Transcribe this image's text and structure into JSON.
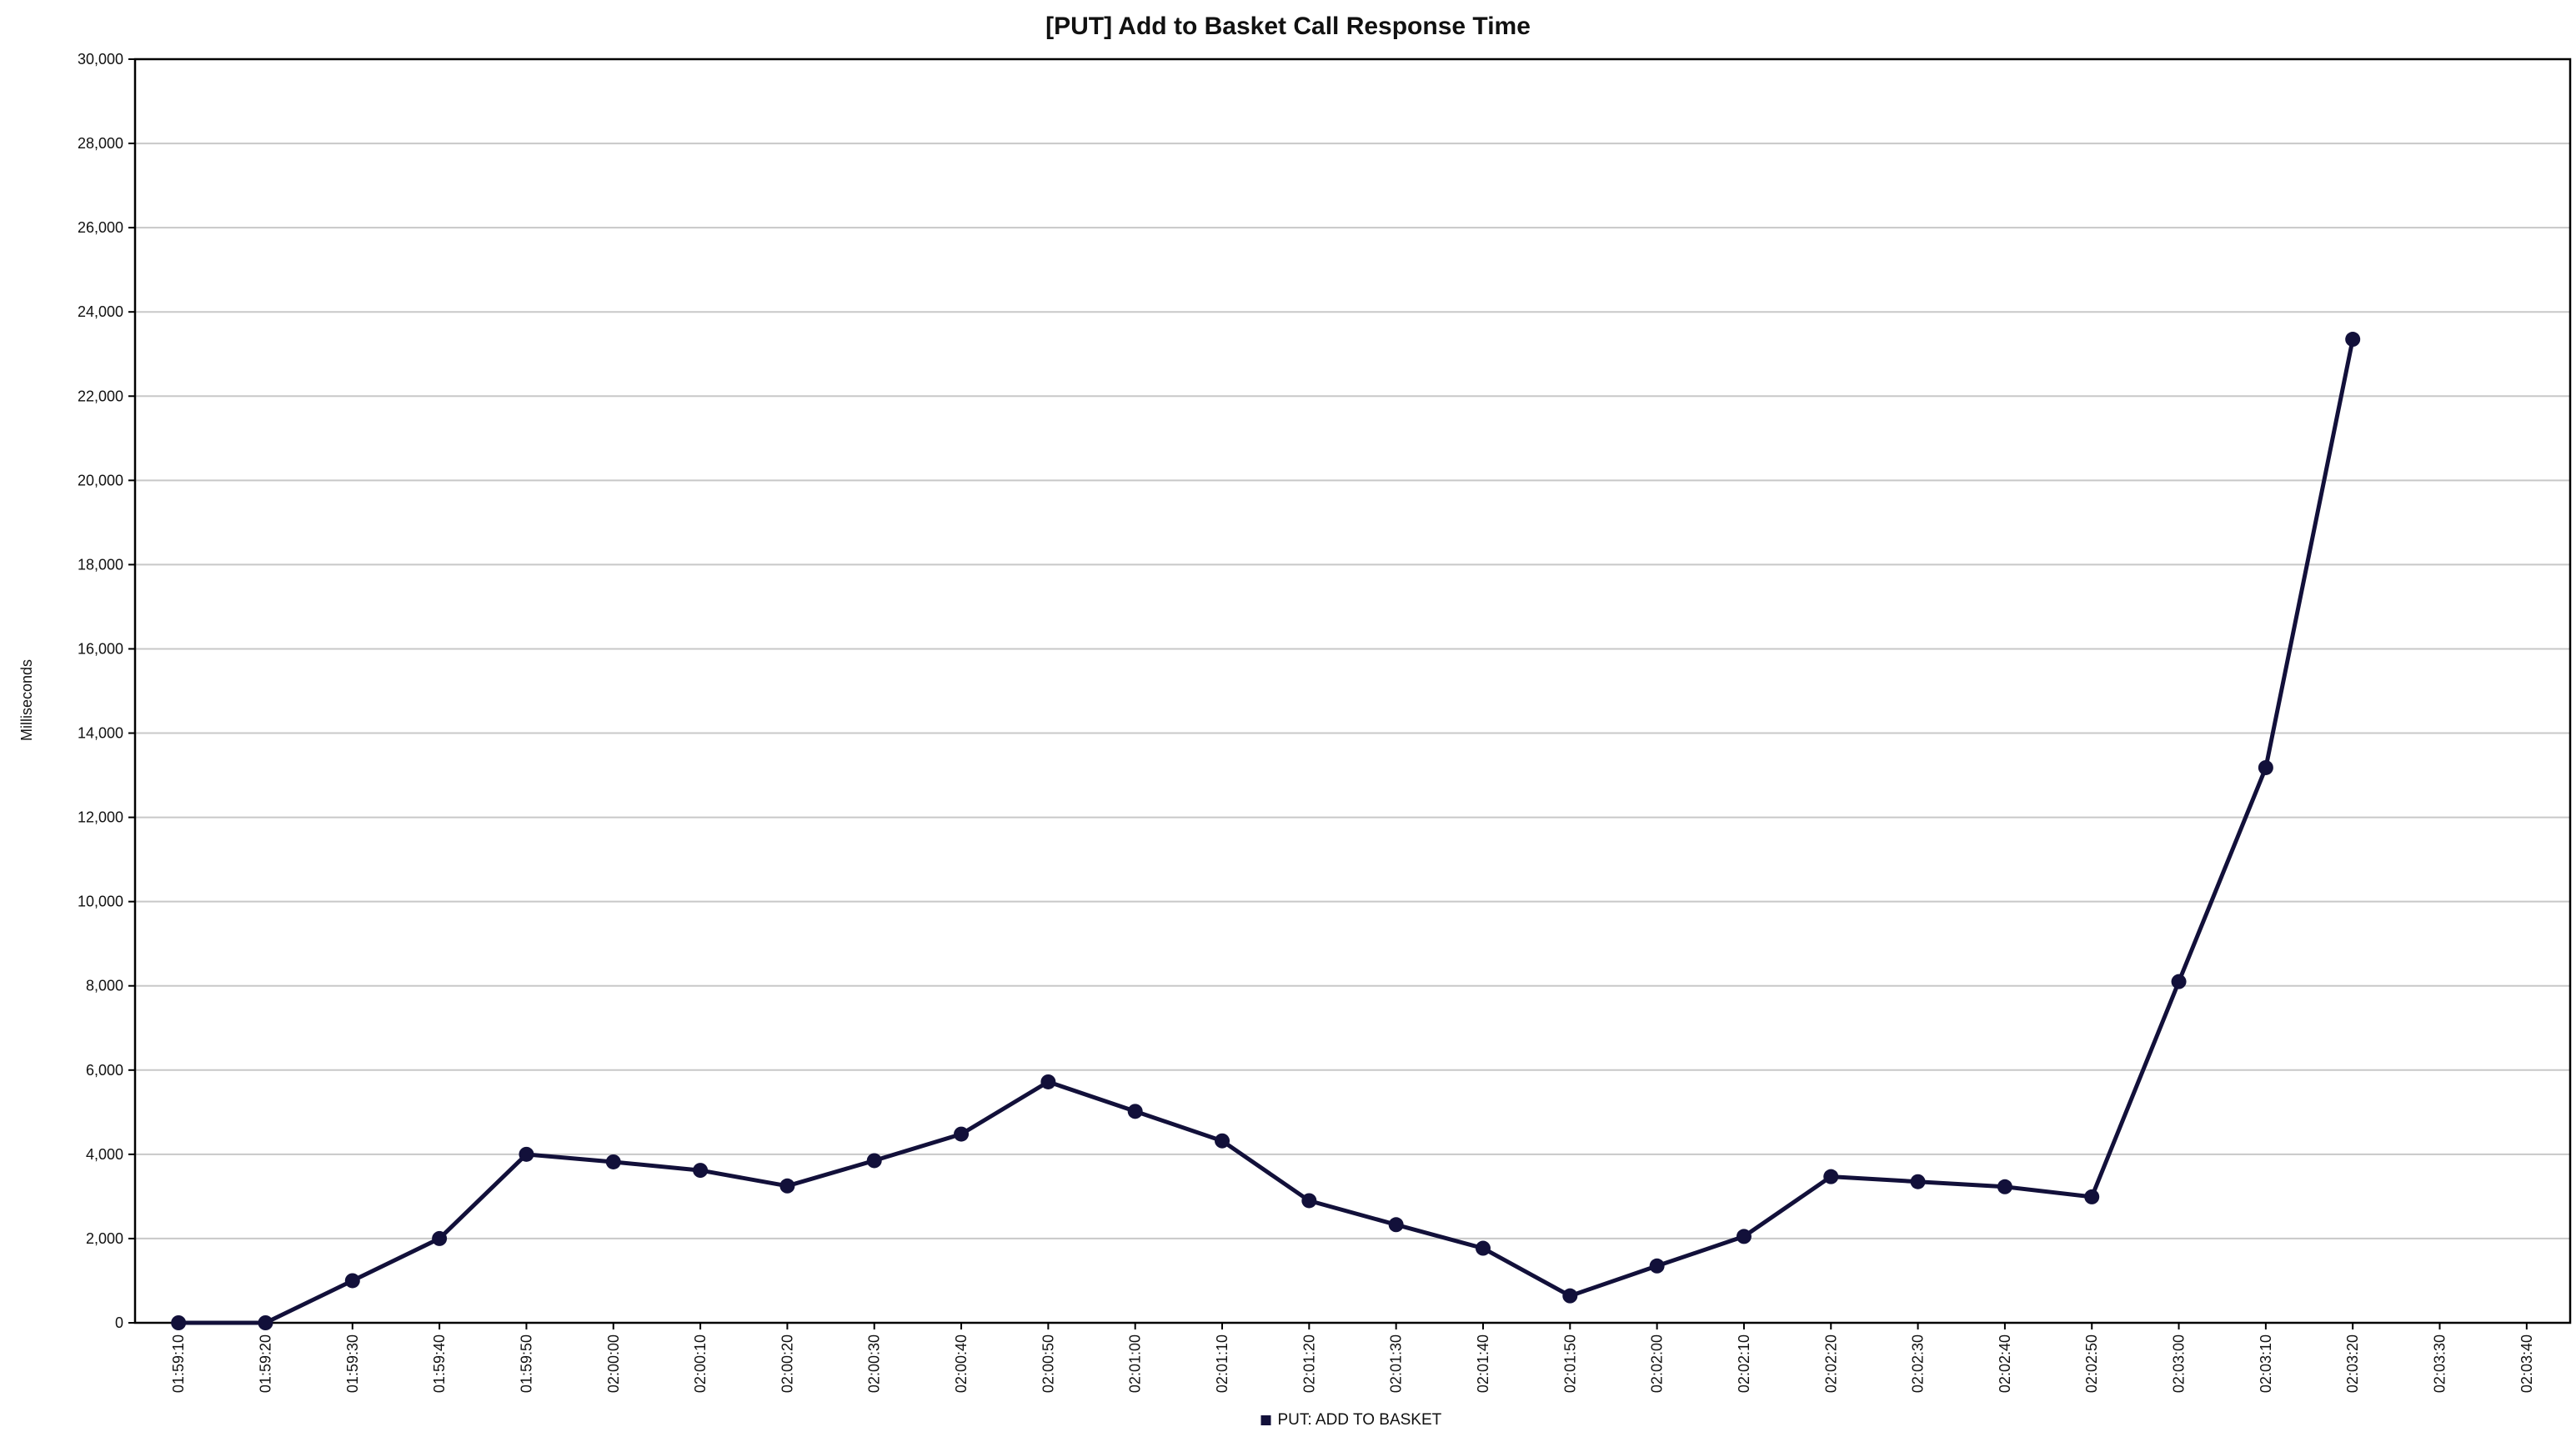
{
  "chart_data": {
    "type": "line",
    "title": "[PUT] Add to Basket Call Response Time",
    "xlabel": "",
    "ylabel": "Milliseconds",
    "ylim": [
      0,
      30000
    ],
    "yticks": [
      0,
      2000,
      4000,
      6000,
      8000,
      10000,
      12000,
      14000,
      16000,
      18000,
      20000,
      22000,
      24000,
      26000,
      28000,
      30000
    ],
    "ytick_labels": [
      "0",
      "2,000",
      "4,000",
      "6,000",
      "8,000",
      "10,000",
      "12,000",
      "14,000",
      "16,000",
      "18,000",
      "20,000",
      "22,000",
      "24,000",
      "26,000",
      "28,000",
      "30,000"
    ],
    "categories": [
      "01:59:10",
      "01:59:20",
      "01:59:30",
      "01:59:40",
      "01:59:50",
      "02:00:00",
      "02:00:10",
      "02:00:20",
      "02:00:30",
      "02:00:40",
      "02:00:50",
      "02:01:00",
      "02:01:10",
      "02:01:20",
      "02:01:30",
      "02:01:40",
      "02:01:50",
      "02:02:00",
      "02:02:10",
      "02:02:20",
      "02:02:30",
      "02:02:40",
      "02:02:50",
      "02:03:00",
      "02:03:10",
      "02:03:20",
      "02:03:30",
      "02:03:40"
    ],
    "grid": "horizontal",
    "legend_position": "bottom-center",
    "series": [
      {
        "name": "PUT: ADD TO BASKET",
        "color": "#12103a",
        "values": [
          0,
          0,
          1000,
          2000,
          4000,
          3820,
          3620,
          3250,
          3850,
          4480,
          5720,
          5020,
          4320,
          2900,
          2330,
          1770,
          640,
          1350,
          2050,
          3470,
          3350,
          3230,
          2990,
          8100,
          13180,
          23350,
          null,
          null
        ]
      }
    ]
  }
}
